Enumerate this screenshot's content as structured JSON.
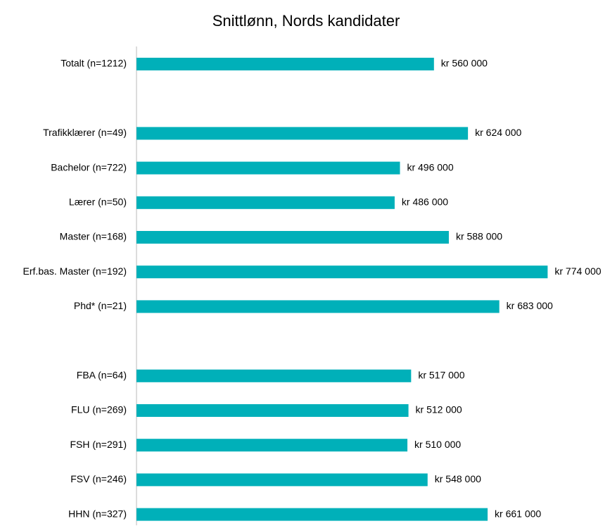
{
  "chart_data": {
    "type": "bar",
    "orientation": "horizontal",
    "title": "Snittlønn, Nords kandidater",
    "categories": [
      "Totalt (n=1212)",
      null,
      "Trafikklærer (n=49)",
      "Bachelor (n=722)",
      "Lærer (n=50)",
      "Master (n=168)",
      "Erf.bas. Master (n=192)",
      "Phd* (n=21)",
      null,
      "FBA (n=64)",
      "FLU (n=269)",
      "FSH (n=291)",
      "FSV (n=246)",
      "HHN (n=327)"
    ],
    "values": [
      560000,
      null,
      624000,
      496000,
      486000,
      588000,
      774000,
      683000,
      null,
      517000,
      512000,
      510000,
      548000,
      661000
    ],
    "value_labels": [
      "kr 560 000",
      null,
      "kr 624 000",
      "kr 496 000",
      "kr 486 000",
      "kr 588 000",
      "kr 774 000",
      "kr 683 000",
      null,
      "kr 517 000",
      "kr 512 000",
      "kr 510 000",
      "kr 548 000",
      "kr 661 000"
    ],
    "color": "#00b0b9",
    "xlim": [
      0,
      800000
    ]
  }
}
